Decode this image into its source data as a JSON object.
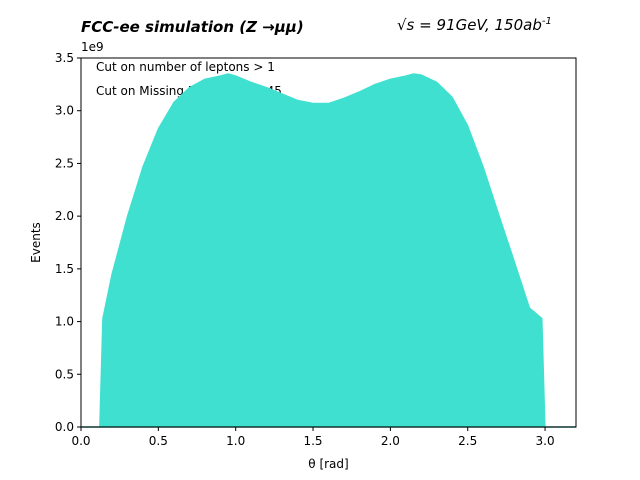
{
  "chart_data": {
    "type": "area",
    "title_left": "FCC-ee simulation (Z →μμ)",
    "title_right_prefix": "√s = 91GeV, 150ab",
    "title_right_sup": "-1",
    "xlabel": "θ [rad]",
    "ylabel": "Events",
    "y_exponent_label": "1e9",
    "xlim": [
      0.0,
      3.2
    ],
    "ylim": [
      0.0,
      3.5
    ],
    "x_ticks": [
      "0.0",
      "0.5",
      "1.0",
      "1.5",
      "2.0",
      "2.5",
      "3.0"
    ],
    "y_ticks": [
      "0.0",
      "0.5",
      "1.0",
      "1.5",
      "2.0",
      "2.5",
      "3.0",
      "3.5"
    ],
    "fill_color": "#40e0d0",
    "annotations": [
      "Cut on number of leptons > 1",
      "Cut on Missing Energy < 22.45"
    ],
    "series": [
      {
        "x": [
          0.12,
          0.14,
          0.2,
          0.3,
          0.4,
          0.5,
          0.6,
          0.7,
          0.8,
          0.9,
          0.95,
          1.0,
          1.1,
          1.2,
          1.3,
          1.4,
          1.5,
          1.6,
          1.7,
          1.8,
          1.9,
          2.0,
          2.1,
          2.15,
          2.2,
          2.3,
          2.4,
          2.5,
          2.6,
          2.7,
          2.8,
          2.9,
          2.98,
          3.0
        ],
        "y": [
          0.0,
          1.03,
          1.45,
          2.0,
          2.47,
          2.83,
          3.08,
          3.22,
          3.3,
          3.33,
          3.35,
          3.33,
          3.27,
          3.22,
          3.16,
          3.1,
          3.07,
          3.07,
          3.12,
          3.18,
          3.25,
          3.3,
          3.33,
          3.35,
          3.34,
          3.27,
          3.13,
          2.86,
          2.47,
          2.02,
          1.58,
          1.13,
          1.03,
          0.0
        ]
      }
    ]
  }
}
